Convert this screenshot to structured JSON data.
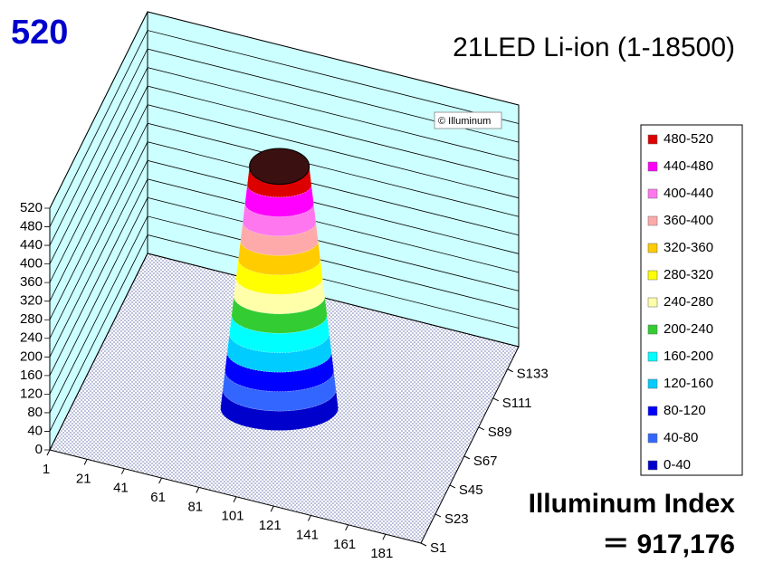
{
  "chart_data": {
    "type": "surface3d",
    "title": "21LED Li-ion (1-18500)",
    "peak": 520,
    "watermark": "© Illuminum",
    "index_title": "Illuminum Index",
    "index_value": "＝ 917,176",
    "xlim": [
      1,
      200
    ],
    "xticks": [
      1,
      21,
      41,
      61,
      81,
      101,
      121,
      141,
      161,
      181
    ],
    "ylim": [
      1,
      150
    ],
    "yticks": [
      {
        "value": 1,
        "label": "S1"
      },
      {
        "value": 23,
        "label": "S23"
      },
      {
        "value": 45,
        "label": "S45"
      },
      {
        "value": 67,
        "label": "S67"
      },
      {
        "value": 89,
        "label": "S89"
      },
      {
        "value": 111,
        "label": "S111"
      },
      {
        "value": 133,
        "label": "S133"
      }
    ],
    "zlim": [
      0,
      520
    ],
    "zticks": [
      0,
      40,
      80,
      120,
      160,
      200,
      240,
      280,
      320,
      360,
      400,
      440,
      480,
      520
    ],
    "wall_color": "#ccffff",
    "peak_color": "#3a1010",
    "legend": [
      {
        "label": "480-520",
        "color": "#dd0000"
      },
      {
        "label": "440-480",
        "color": "#ff00ff"
      },
      {
        "label": "400-440",
        "color": "#ff77ee"
      },
      {
        "label": "360-400",
        "color": "#ffaaaa"
      },
      {
        "label": "320-360",
        "color": "#ffcc00"
      },
      {
        "label": "280-320",
        "color": "#ffff00"
      },
      {
        "label": "240-280",
        "color": "#ffffaa"
      },
      {
        "label": "200-240",
        "color": "#33cc33"
      },
      {
        "label": "160-200",
        "color": "#00ffff"
      },
      {
        "label": "120-160",
        "color": "#00ccff"
      },
      {
        "label": "80-120",
        "color": "#0000ff"
      },
      {
        "label": "40-80",
        "color": "#3366ff"
      },
      {
        "label": "0-40",
        "color": "#0000cc"
      }
    ]
  }
}
